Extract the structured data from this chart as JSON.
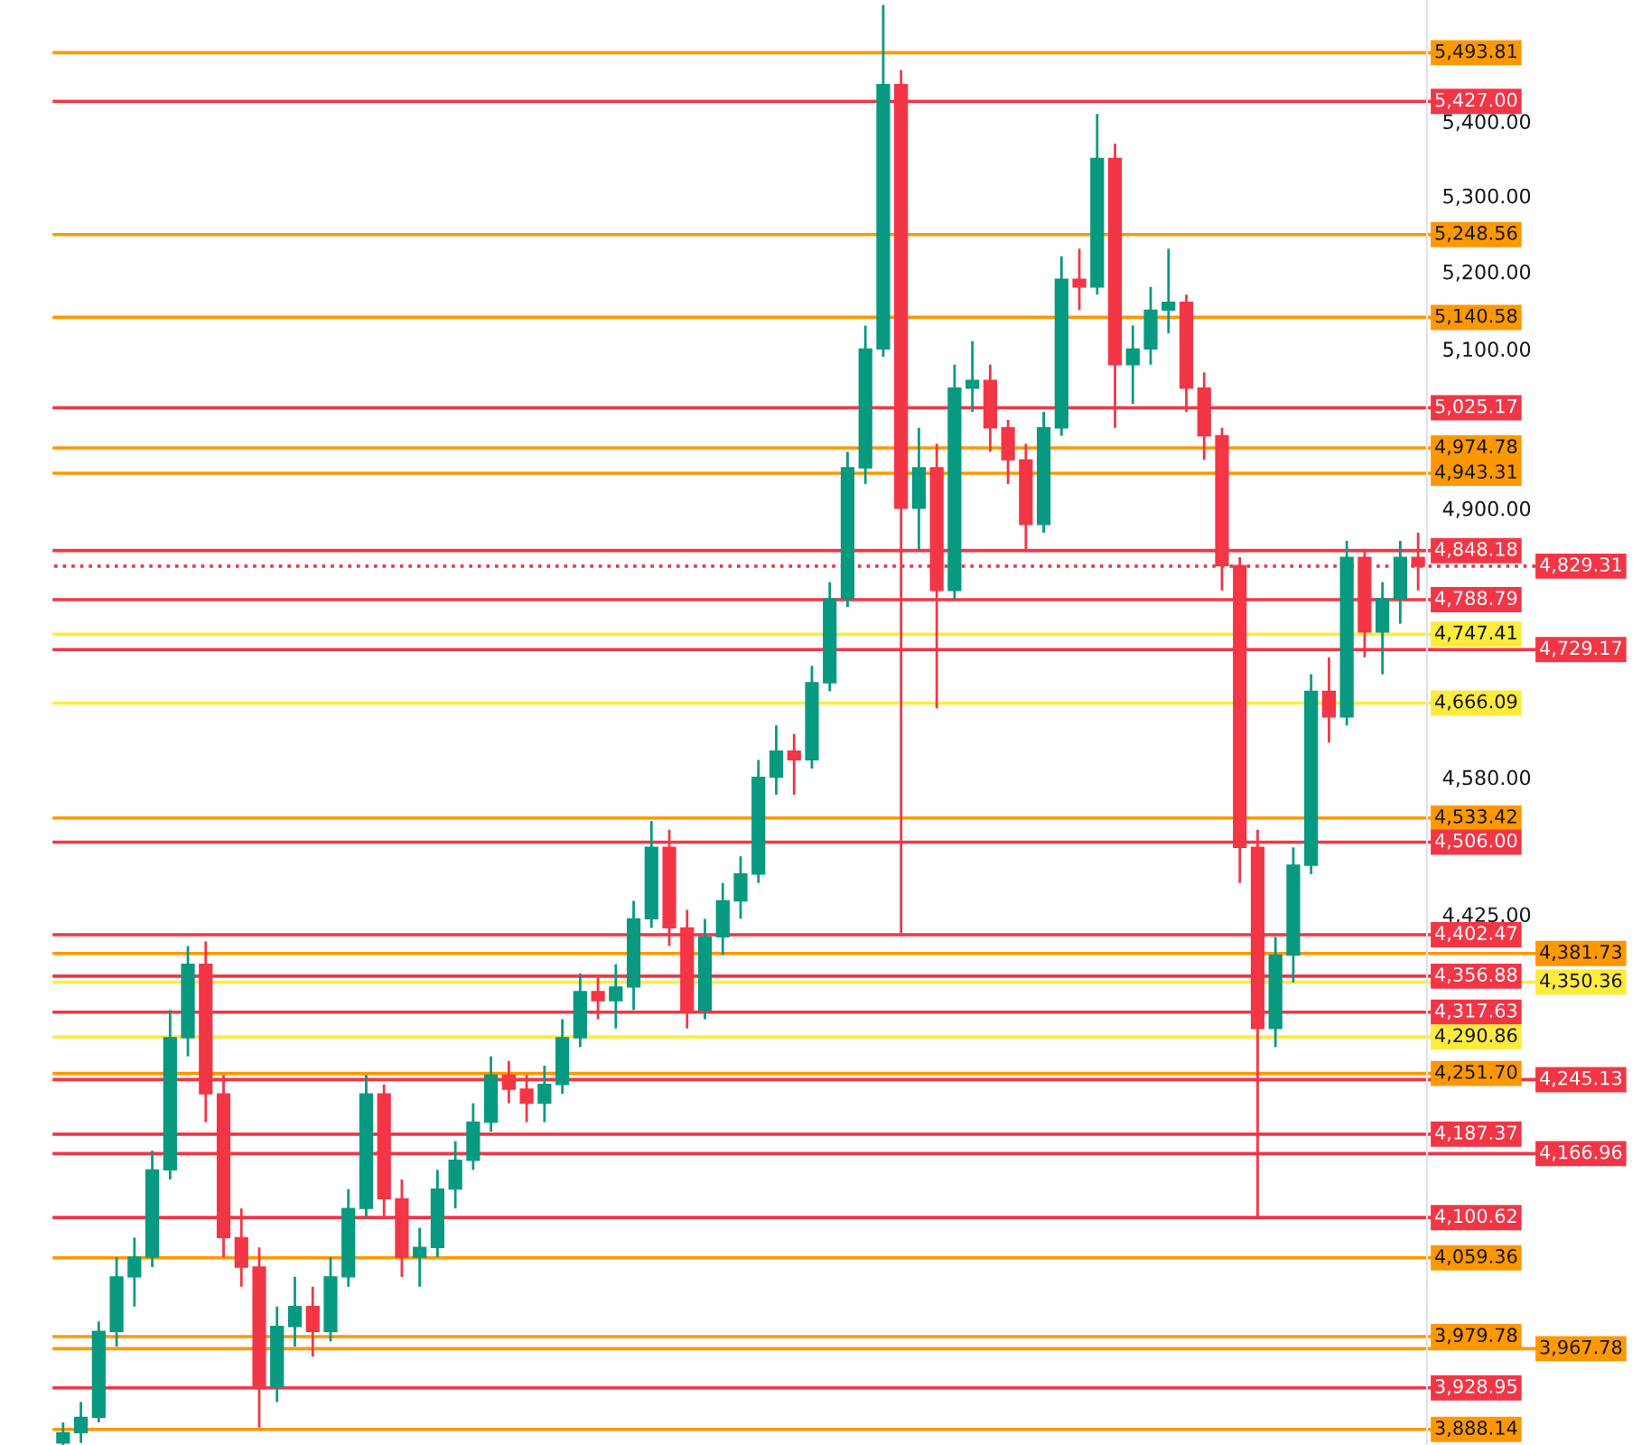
{
  "chart_data": {
    "type": "candlestick",
    "categories": [
      null,
      null,
      null,
      null,
      null,
      null,
      null,
      null,
      null,
      null,
      null,
      null,
      null,
      null,
      null,
      null,
      null,
      null,
      null,
      null,
      null,
      null,
      null,
      null,
      null,
      null,
      null,
      null,
      null,
      null,
      null,
      null,
      null,
      null,
      null,
      null,
      null,
      null,
      null,
      null,
      null,
      null,
      null,
      null,
      null,
      null,
      null,
      null,
      null,
      null,
      null,
      null,
      null,
      null,
      null,
      null,
      null,
      null,
      null,
      null,
      null,
      null,
      null,
      null,
      null,
      null,
      null,
      null,
      null,
      null,
      null,
      null,
      null,
      null,
      null,
      null,
      null
    ],
    "ohlc": [
      [
        3875,
        3895,
        3870,
        3885
      ],
      [
        3885,
        3915,
        3875,
        3900
      ],
      [
        3900,
        3995,
        3895,
        3985
      ],
      [
        3985,
        4060,
        3970,
        4040
      ],
      [
        4040,
        4080,
        4010,
        4060
      ],
      [
        4060,
        4170,
        4050,
        4150
      ],
      [
        4150,
        4320,
        4140,
        4290
      ],
      [
        4290,
        4390,
        4270,
        4370
      ],
      [
        4370,
        4395,
        4200,
        4230
      ],
      [
        4230,
        4250,
        4060,
        4080
      ],
      [
        4080,
        4110,
        4030,
        4050
      ],
      [
        4050,
        4070,
        3890,
        3930
      ],
      [
        3930,
        4010,
        3915,
        3990
      ],
      [
        3990,
        4040,
        3970,
        4010
      ],
      [
        4010,
        4030,
        3960,
        3985
      ],
      [
        3985,
        4060,
        3975,
        4040
      ],
      [
        4040,
        4130,
        4030,
        4110
      ],
      [
        4110,
        4250,
        4100,
        4230
      ],
      [
        4230,
        4240,
        4100,
        4120
      ],
      [
        4120,
        4140,
        4040,
        4060
      ],
      [
        4060,
        4090,
        4030,
        4070
      ],
      [
        4070,
        4150,
        4060,
        4130
      ],
      [
        4130,
        4180,
        4110,
        4160
      ],
      [
        4160,
        4220,
        4150,
        4200
      ],
      [
        4200,
        4270,
        4190,
        4250
      ],
      [
        4250,
        4265,
        4220,
        4235
      ],
      [
        4235,
        4250,
        4200,
        4220
      ],
      [
        4220,
        4260,
        4200,
        4240
      ],
      [
        4240,
        4310,
        4230,
        4290
      ],
      [
        4290,
        4360,
        4280,
        4340
      ],
      [
        4340,
        4355,
        4310,
        4330
      ],
      [
        4330,
        4370,
        4300,
        4345
      ],
      [
        4345,
        4440,
        4320,
        4420
      ],
      [
        4420,
        4530,
        4410,
        4500
      ],
      [
        4500,
        4520,
        4390,
        4410
      ],
      [
        4410,
        4430,
        4300,
        4320
      ],
      [
        4320,
        4420,
        4310,
        4400
      ],
      [
        4400,
        4460,
        4380,
        4440
      ],
      [
        4440,
        4490,
        4420,
        4470
      ],
      [
        4470,
        4600,
        4460,
        4580
      ],
      [
        4580,
        4640,
        4560,
        4610
      ],
      [
        4610,
        4630,
        4560,
        4600
      ],
      [
        4600,
        4710,
        4590,
        4690
      ],
      [
        4690,
        4810,
        4680,
        4790
      ],
      [
        4790,
        4970,
        4780,
        4950
      ],
      [
        4950,
        5130,
        4930,
        5100
      ],
      [
        5100,
        5560,
        5090,
        5450
      ],
      [
        5450,
        5470,
        4404,
        4900
      ],
      [
        4900,
        5000,
        4850,
        4950
      ],
      [
        4950,
        4980,
        4660,
        4800
      ],
      [
        4800,
        5080,
        4790,
        5050
      ],
      [
        5050,
        5110,
        5020,
        5060
      ],
      [
        5060,
        5080,
        4970,
        5000
      ],
      [
        5000,
        5010,
        4930,
        4960
      ],
      [
        4960,
        4980,
        4850,
        4880
      ],
      [
        4880,
        5020,
        4870,
        5000
      ],
      [
        5000,
        5220,
        4990,
        5190
      ],
      [
        5190,
        5230,
        5150,
        5180
      ],
      [
        5180,
        5410,
        5170,
        5350
      ],
      [
        5350,
        5370,
        5000,
        5080
      ],
      [
        5080,
        5130,
        5030,
        5100
      ],
      [
        5100,
        5180,
        5080,
        5150
      ],
      [
        5150,
        5230,
        5120,
        5160
      ],
      [
        5160,
        5170,
        5020,
        5050
      ],
      [
        5050,
        5070,
        4960,
        4990
      ],
      [
        4990,
        5000,
        4800,
        4830
      ],
      [
        4830,
        4840,
        4460,
        4500
      ],
      [
        4500,
        4520,
        4100,
        4300
      ],
      [
        4300,
        4400,
        4280,
        4380
      ],
      [
        4380,
        4500,
        4350,
        4480
      ],
      [
        4480,
        4700,
        4470,
        4680
      ],
      [
        4680,
        4720,
        4620,
        4650
      ],
      [
        4650,
        4860,
        4640,
        4840
      ],
      [
        4840,
        4850,
        4720,
        4750
      ],
      [
        4750,
        4810,
        4700,
        4790
      ],
      [
        4790,
        4860,
        4760,
        4840
      ],
      [
        4840,
        4870,
        4800,
        4829
      ]
    ],
    "colors": [
      "#089981",
      "#089981",
      "#089981",
      "#089981",
      "#089981",
      "#089981",
      "#089981",
      "#089981",
      "#f23645",
      "#f23645",
      "#f23645",
      "#f23645",
      "#089981",
      "#089981",
      "#f23645",
      "#089981",
      "#089981",
      "#089981",
      "#f23645",
      "#f23645",
      "#089981",
      "#089981",
      "#089981",
      "#089981",
      "#089981",
      "#f23645",
      "#f23645",
      "#089981",
      "#089981",
      "#089981",
      "#f23645",
      "#089981",
      "#089981",
      "#089981",
      "#f23645",
      "#f23645",
      "#089981",
      "#089981",
      "#089981",
      "#089981",
      "#089981",
      "#f23645",
      "#089981",
      "#089981",
      "#089981",
      "#089981",
      "#089981",
      "#f23645",
      "#089981",
      "#f23645",
      "#089981",
      "#089981",
      "#f23645",
      "#f23645",
      "#f23645",
      "#089981",
      "#089981",
      "#f23645",
      "#089981",
      "#f23645",
      "#089981",
      "#089981",
      "#089981",
      "#f23645",
      "#f23645",
      "#f23645",
      "#f23645",
      "#f23645",
      "#089981",
      "#089981",
      "#089981",
      "#f23645",
      "#089981",
      "#f23645",
      "#089981",
      "#089981",
      "#f23645"
    ],
    "log": true,
    "ylim": [
      3873,
      5567
    ],
    "yticks": [
      {
        "value": 5400,
        "label": "5,400.00"
      },
      {
        "value": 5300,
        "label": "5,300.00"
      },
      {
        "value": 5200,
        "label": "5,200.00"
      },
      {
        "value": 5100,
        "label": "5,100.00"
      },
      {
        "value": 4900,
        "label": "4,900.00"
      },
      {
        "value": 4580,
        "label": "4,580.00"
      },
      {
        "value": 4425,
        "label": "4,425.00"
      }
    ],
    "tick_labels": "y",
    "grid": false,
    "ref_lines": [
      {
        "axis": "y",
        "value": 5493.81,
        "label": "5,493.81",
        "color": "#ff9800"
      },
      {
        "axis": "y",
        "value": 5427.0,
        "label": "5,427.00",
        "color": "#f23645"
      },
      {
        "axis": "y",
        "value": 5248.56,
        "label": "5,248.56",
        "color": "#ff9800"
      },
      {
        "axis": "y",
        "value": 5140.58,
        "label": "5,140.58",
        "color": "#ff9800"
      },
      {
        "axis": "y",
        "value": 5025.17,
        "label": "5,025.17",
        "color": "#f23645"
      },
      {
        "axis": "y",
        "value": 4974.78,
        "label": "4,974.78",
        "color": "#ff9800"
      },
      {
        "axis": "y",
        "value": 4943.31,
        "label": "4,943.31",
        "color": "#ff9800"
      },
      {
        "axis": "y",
        "value": 4848.18,
        "label": "4,848.18",
        "color": "#f23645"
      },
      {
        "axis": "y",
        "value": 4829.31,
        "label": "4,829.31",
        "color": "#f23645",
        "line_style": "dotted"
      },
      {
        "axis": "y",
        "value": 4788.79,
        "label": "4,788.79",
        "color": "#f23645"
      },
      {
        "axis": "y",
        "value": 4747.41,
        "label": "4,747.41",
        "color": "#ffeb3b"
      },
      {
        "axis": "y",
        "value": 4729.17,
        "label": "4,729.17",
        "color": "#f23645"
      },
      {
        "axis": "y",
        "value": 4666.09,
        "label": "4,666.09",
        "color": "#ffeb3b"
      },
      {
        "axis": "y",
        "value": 4533.42,
        "label": "4,533.42",
        "color": "#ff9800"
      },
      {
        "axis": "y",
        "value": 4506.0,
        "label": "4,506.00",
        "color": "#f23645"
      },
      {
        "axis": "y",
        "value": 4402.47,
        "label": "4,402.47",
        "color": "#f23645"
      },
      {
        "axis": "y",
        "value": 4381.73,
        "label": "4,381.73",
        "color": "#ff9800"
      },
      {
        "axis": "y",
        "value": 4356.88,
        "label": "4,356.88",
        "color": "#f23645"
      },
      {
        "axis": "y",
        "value": 4350.36,
        "label": "4,350.36",
        "color": "#ffeb3b"
      },
      {
        "axis": "y",
        "value": 4317.63,
        "label": "4,317.63",
        "color": "#f23645"
      },
      {
        "axis": "y",
        "value": 4290.86,
        "label": "4,290.86",
        "color": "#ffeb3b"
      },
      {
        "axis": "y",
        "value": 4251.7,
        "label": "4,251.70",
        "color": "#ff9800"
      },
      {
        "axis": "y",
        "value": 4245.13,
        "label": "4,245.13",
        "color": "#f23645"
      },
      {
        "axis": "y",
        "value": 4187.37,
        "label": "4,187.37",
        "color": "#f23645"
      },
      {
        "axis": "y",
        "value": 4166.96,
        "label": "4,166.96",
        "color": "#f23645"
      },
      {
        "axis": "y",
        "value": 4100.62,
        "label": "4,100.62",
        "color": "#f23645"
      },
      {
        "axis": "y",
        "value": 4059.36,
        "label": "4,059.36",
        "color": "#ff9800"
      },
      {
        "axis": "y",
        "value": 3979.78,
        "label": "3,979.78",
        "color": "#ff9800"
      },
      {
        "axis": "y",
        "value": 3967.78,
        "label": "3,967.78",
        "color": "#ff9800"
      },
      {
        "axis": "y",
        "value": 3928.95,
        "label": "3,928.95",
        "color": "#f23645"
      },
      {
        "axis": "y",
        "value": 3888.14,
        "label": "3,888.14",
        "color": "#ff9800"
      }
    ]
  }
}
